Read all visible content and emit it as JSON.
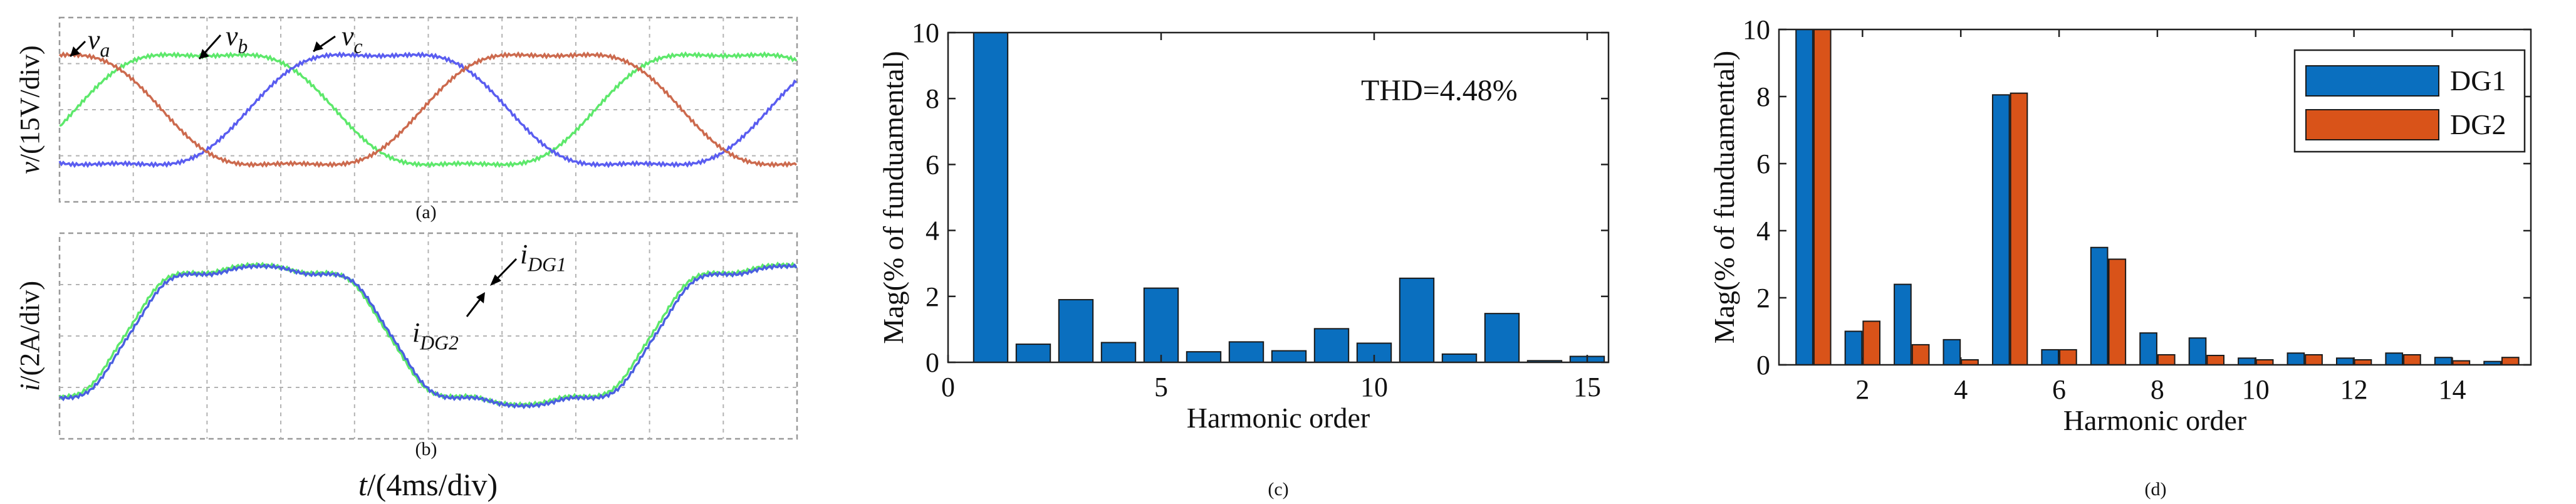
{
  "chart_data": [
    {
      "panel": "(a)",
      "type": "line",
      "ylabel_main": "v",
      "ylabel_unit": "/(15V/div)",
      "series": [
        {
          "name": "v_a",
          "label_main": "v",
          "label_sub": "a",
          "color": "#5de86b"
        },
        {
          "name": "v_b",
          "label_main": "v",
          "label_sub": "b",
          "color": "#5a5df0"
        },
        {
          "name": "v_c",
          "label_main": "v",
          "label_sub": "c",
          "color": "#cc6a4e"
        }
      ],
      "caption": "(a)"
    },
    {
      "panel": "(b)",
      "type": "line",
      "ylabel_main": "i",
      "ylabel_unit": "/(2A/div)",
      "xlabel_main": "t",
      "xlabel_unit": "/(4ms/div)",
      "series": [
        {
          "name": "i_DG1",
          "label_main": "i",
          "label_sub": "DG1",
          "color": "#5de86b"
        },
        {
          "name": "i_DG2",
          "label_main": "i",
          "label_sub": "DG2",
          "color": "#4a5fe0"
        }
      ],
      "caption": "(b)"
    },
    {
      "panel": "(c)",
      "type": "bar",
      "x": [
        1,
        2,
        3,
        4,
        5,
        6,
        7,
        8,
        9,
        10,
        11,
        12,
        13,
        14,
        15
      ],
      "values": [
        10,
        0.55,
        1.9,
        0.6,
        2.25,
        0.32,
        0.62,
        0.35,
        1.02,
        0.58,
        2.55,
        0.25,
        1.48,
        0.05,
        0.18
      ],
      "xlim": [
        0,
        15.5
      ],
      "ylim": [
        0,
        10
      ],
      "xticks": [
        0,
        5,
        10,
        15
      ],
      "yticks": [
        0,
        2,
        4,
        6,
        8,
        10
      ],
      "xlabel": "Harmonic order",
      "ylabel": "Mag(% of funduamental)",
      "annotation": "THD=4.48%",
      "color": "#0a6fbf",
      "caption": "(c)"
    },
    {
      "panel": "(d)",
      "type": "bar",
      "x": [
        1,
        2,
        3,
        4,
        5,
        6,
        7,
        8,
        9,
        10,
        11,
        12,
        13,
        14,
        15
      ],
      "xlim": [
        0.3,
        15.6
      ],
      "ylim": [
        0,
        10
      ],
      "xticks": [
        2,
        4,
        6,
        8,
        10,
        12,
        14
      ],
      "yticks": [
        0,
        2,
        4,
        6,
        8,
        10
      ],
      "xlabel": "Harmonic order",
      "ylabel": "Mag(% of funduamental)",
      "series": [
        {
          "name": "DG1",
          "color": "#0a6fbf",
          "values": [
            10,
            1.0,
            2.4,
            0.75,
            8.05,
            0.45,
            3.5,
            0.95,
            0.8,
            0.2,
            0.35,
            0.2,
            0.35,
            0.22,
            0.1
          ]
        },
        {
          "name": "DG2",
          "color": "#d95319",
          "values": [
            10,
            1.3,
            0.6,
            0.15,
            8.1,
            0.45,
            3.15,
            0.3,
            0.28,
            0.15,
            0.3,
            0.15,
            0.3,
            0.12,
            0.22
          ]
        }
      ],
      "legend": "top-right",
      "caption": "(d)"
    }
  ]
}
